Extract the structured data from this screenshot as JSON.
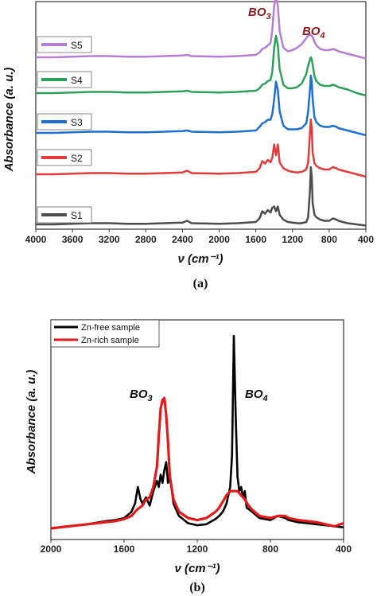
{
  "chart_data": [
    {
      "type": "line",
      "panel_label": "(a)",
      "xlabel": "ν (cm⁻¹)",
      "ylabel": "Absorbance (a. u.)",
      "xlim": [
        4000,
        400
      ],
      "xticks": [
        4000,
        3600,
        3200,
        2800,
        2400,
        2000,
        1600,
        1200,
        800,
        400
      ],
      "stacked": true,
      "annotations": [
        {
          "text": "BO₃",
          "x": 1380,
          "color": "#8b1a1a"
        },
        {
          "text": "BO₄",
          "x": 1000,
          "color": "#8b1a1a"
        }
      ],
      "series": [
        {
          "name": "S1",
          "color": "#4d4d4d",
          "x": [
            4000,
            3800,
            3600,
            3400,
            3200,
            3000,
            2800,
            2600,
            2400,
            2350,
            2300,
            2000,
            1800,
            1600,
            1560,
            1530,
            1500,
            1470,
            1440,
            1420,
            1400,
            1380,
            1360,
            1340,
            1300,
            1250,
            1200,
            1150,
            1100,
            1050,
            1030,
            1010,
            1000,
            990,
            980,
            960,
            940,
            900,
            850,
            800,
            760,
            720,
            700,
            650,
            600,
            500,
            400
          ],
          "y": [
            0.02,
            0.02,
            0.025,
            0.03,
            0.03,
            0.025,
            0.025,
            0.03,
            0.035,
            0.05,
            0.03,
            0.025,
            0.03,
            0.04,
            0.07,
            0.13,
            0.11,
            0.14,
            0.12,
            0.16,
            0.17,
            0.13,
            0.17,
            0.1,
            0.06,
            0.04,
            0.035,
            0.03,
            0.03,
            0.04,
            0.08,
            0.3,
            0.5,
            0.42,
            0.2,
            0.1,
            0.08,
            0.06,
            0.05,
            0.05,
            0.07,
            0.06,
            0.05,
            0.04,
            0.03,
            0.02,
            0.01
          ]
        },
        {
          "name": "S2",
          "color": "#e03c3c",
          "x": [
            4000,
            3800,
            3600,
            3400,
            3200,
            3000,
            2800,
            2600,
            2400,
            2350,
            2300,
            2000,
            1800,
            1600,
            1560,
            1530,
            1500,
            1470,
            1440,
            1420,
            1400,
            1380,
            1360,
            1340,
            1300,
            1250,
            1200,
            1150,
            1100,
            1050,
            1030,
            1010,
            1000,
            990,
            980,
            960,
            940,
            900,
            850,
            800,
            760,
            720,
            700,
            650,
            600,
            500,
            400
          ],
          "y": [
            0.02,
            0.02,
            0.025,
            0.03,
            0.03,
            0.025,
            0.025,
            0.03,
            0.035,
            0.05,
            0.03,
            0.025,
            0.03,
            0.04,
            0.07,
            0.13,
            0.11,
            0.14,
            0.12,
            0.16,
            0.27,
            0.18,
            0.27,
            0.12,
            0.07,
            0.05,
            0.04,
            0.035,
            0.04,
            0.06,
            0.12,
            0.36,
            0.48,
            0.4,
            0.2,
            0.11,
            0.09,
            0.07,
            0.06,
            0.06,
            0.08,
            0.07,
            0.06,
            0.05,
            0.04,
            0.02,
            0.0
          ]
        },
        {
          "name": "S3",
          "color": "#1f6fd1",
          "x": [
            4000,
            3800,
            3600,
            3400,
            3200,
            3000,
            2800,
            2600,
            2400,
            2350,
            2300,
            2000,
            1800,
            1600,
            1560,
            1530,
            1500,
            1470,
            1440,
            1420,
            1400,
            1380,
            1360,
            1340,
            1300,
            1250,
            1200,
            1150,
            1100,
            1050,
            1030,
            1010,
            1000,
            990,
            980,
            960,
            940,
            900,
            850,
            800,
            760,
            720,
            700,
            650,
            600,
            500,
            400
          ],
          "y": [
            0.02,
            0.02,
            0.025,
            0.03,
            0.03,
            0.025,
            0.025,
            0.03,
            0.035,
            0.04,
            0.03,
            0.025,
            0.03,
            0.04,
            0.07,
            0.1,
            0.11,
            0.13,
            0.13,
            0.18,
            0.3,
            0.45,
            0.38,
            0.2,
            0.08,
            0.05,
            0.05,
            0.05,
            0.06,
            0.1,
            0.2,
            0.38,
            0.5,
            0.45,
            0.3,
            0.15,
            0.11,
            0.08,
            0.07,
            0.07,
            0.08,
            0.07,
            0.06,
            0.05,
            0.04,
            0.02,
            0.0
          ]
        },
        {
          "name": "S4",
          "color": "#2fa05a",
          "x": [
            4000,
            3800,
            3600,
            3400,
            3200,
            3000,
            2800,
            2600,
            2400,
            2350,
            2300,
            2000,
            1800,
            1600,
            1560,
            1530,
            1500,
            1470,
            1440,
            1420,
            1400,
            1380,
            1360,
            1340,
            1300,
            1250,
            1200,
            1150,
            1100,
            1050,
            1030,
            1010,
            1000,
            990,
            980,
            960,
            940,
            900,
            850,
            800,
            760,
            720,
            700,
            650,
            600,
            500,
            400
          ],
          "y": [
            0.02,
            0.02,
            0.025,
            0.03,
            0.03,
            0.025,
            0.025,
            0.03,
            0.035,
            0.04,
            0.03,
            0.025,
            0.03,
            0.04,
            0.06,
            0.09,
            0.1,
            0.12,
            0.13,
            0.2,
            0.4,
            0.5,
            0.42,
            0.22,
            0.09,
            0.06,
            0.06,
            0.07,
            0.1,
            0.18,
            0.25,
            0.3,
            0.32,
            0.3,
            0.26,
            0.16,
            0.12,
            0.09,
            0.08,
            0.08,
            0.09,
            0.08,
            0.07,
            0.06,
            0.05,
            0.02,
            0.0
          ]
        },
        {
          "name": "S5",
          "color": "#b67fd6",
          "x": [
            4000,
            3800,
            3600,
            3400,
            3200,
            3000,
            2800,
            2600,
            2400,
            2350,
            2300,
            2000,
            1800,
            1600,
            1560,
            1530,
            1500,
            1470,
            1440,
            1420,
            1400,
            1380,
            1360,
            1340,
            1300,
            1250,
            1200,
            1150,
            1100,
            1050,
            1030,
            1010,
            1000,
            990,
            980,
            960,
            940,
            900,
            850,
            800,
            760,
            720,
            700,
            650,
            600,
            500,
            400
          ],
          "y": [
            0.02,
            0.02,
            0.025,
            0.03,
            0.03,
            0.025,
            0.025,
            0.03,
            0.035,
            0.04,
            0.03,
            0.025,
            0.03,
            0.04,
            0.06,
            0.09,
            0.1,
            0.12,
            0.14,
            0.25,
            0.45,
            0.53,
            0.45,
            0.24,
            0.1,
            0.07,
            0.08,
            0.1,
            0.13,
            0.18,
            0.2,
            0.21,
            0.21,
            0.2,
            0.19,
            0.15,
            0.12,
            0.09,
            0.08,
            0.08,
            0.09,
            0.08,
            0.07,
            0.06,
            0.05,
            0.03,
            0.01
          ]
        }
      ]
    },
    {
      "type": "line",
      "panel_label": "(b)",
      "xlabel": "ν (cm⁻¹)",
      "ylabel": "Absorbance (a. u.)",
      "xlim": [
        2000,
        400
      ],
      "xticks": [
        2000,
        1600,
        1200,
        800,
        400
      ],
      "annotations": [
        {
          "text": "BO₃",
          "x": 1530,
          "color": "#111111"
        },
        {
          "text": "BO₄",
          "x": 920,
          "color": "#111111"
        }
      ],
      "series": [
        {
          "name": "Zn-free sample",
          "color": "#000000",
          "x": [
            2000,
            1900,
            1800,
            1700,
            1650,
            1600,
            1560,
            1540,
            1525,
            1510,
            1500,
            1480,
            1460,
            1440,
            1420,
            1410,
            1400,
            1390,
            1380,
            1370,
            1360,
            1350,
            1330,
            1300,
            1250,
            1200,
            1150,
            1100,
            1080,
            1060,
            1040,
            1020,
            1010,
            1000,
            990,
            980,
            970,
            960,
            950,
            940,
            930,
            900,
            860,
            800,
            760,
            720,
            700,
            650,
            600,
            550,
            500,
            450,
            400
          ],
          "y": [
            0.0,
            0.01,
            0.02,
            0.035,
            0.04,
            0.05,
            0.08,
            0.12,
            0.2,
            0.14,
            0.12,
            0.15,
            0.11,
            0.18,
            0.23,
            0.2,
            0.26,
            0.22,
            0.28,
            0.32,
            0.22,
            0.26,
            0.12,
            0.06,
            0.025,
            0.015,
            0.02,
            0.045,
            0.06,
            0.08,
            0.12,
            0.2,
            0.35,
            0.93,
            0.55,
            0.25,
            0.18,
            0.2,
            0.15,
            0.18,
            0.1,
            0.08,
            0.05,
            0.04,
            0.06,
            0.05,
            0.04,
            0.03,
            0.025,
            0.02,
            0.015,
            0.01,
            0.005
          ]
        },
        {
          "name": "Zn-rich sample",
          "color": "#e31a1a",
          "x": [
            2000,
            1900,
            1800,
            1700,
            1650,
            1600,
            1560,
            1530,
            1500,
            1480,
            1460,
            1440,
            1420,
            1410,
            1400,
            1390,
            1380,
            1370,
            1360,
            1350,
            1330,
            1300,
            1250,
            1200,
            1150,
            1100,
            1080,
            1060,
            1040,
            1020,
            1000,
            980,
            960,
            940,
            920,
            900,
            860,
            800,
            760,
            720,
            700,
            650,
            600,
            550,
            500,
            450,
            400
          ],
          "y": [
            0.0,
            0.01,
            0.02,
            0.03,
            0.035,
            0.045,
            0.06,
            0.09,
            0.11,
            0.14,
            0.15,
            0.2,
            0.3,
            0.45,
            0.58,
            0.62,
            0.63,
            0.55,
            0.42,
            0.25,
            0.14,
            0.08,
            0.05,
            0.04,
            0.05,
            0.08,
            0.1,
            0.13,
            0.16,
            0.18,
            0.18,
            0.18,
            0.16,
            0.14,
            0.11,
            0.09,
            0.06,
            0.05,
            0.06,
            0.06,
            0.05,
            0.04,
            0.035,
            0.03,
            0.02,
            0.01,
            0.025
          ]
        }
      ]
    }
  ]
}
